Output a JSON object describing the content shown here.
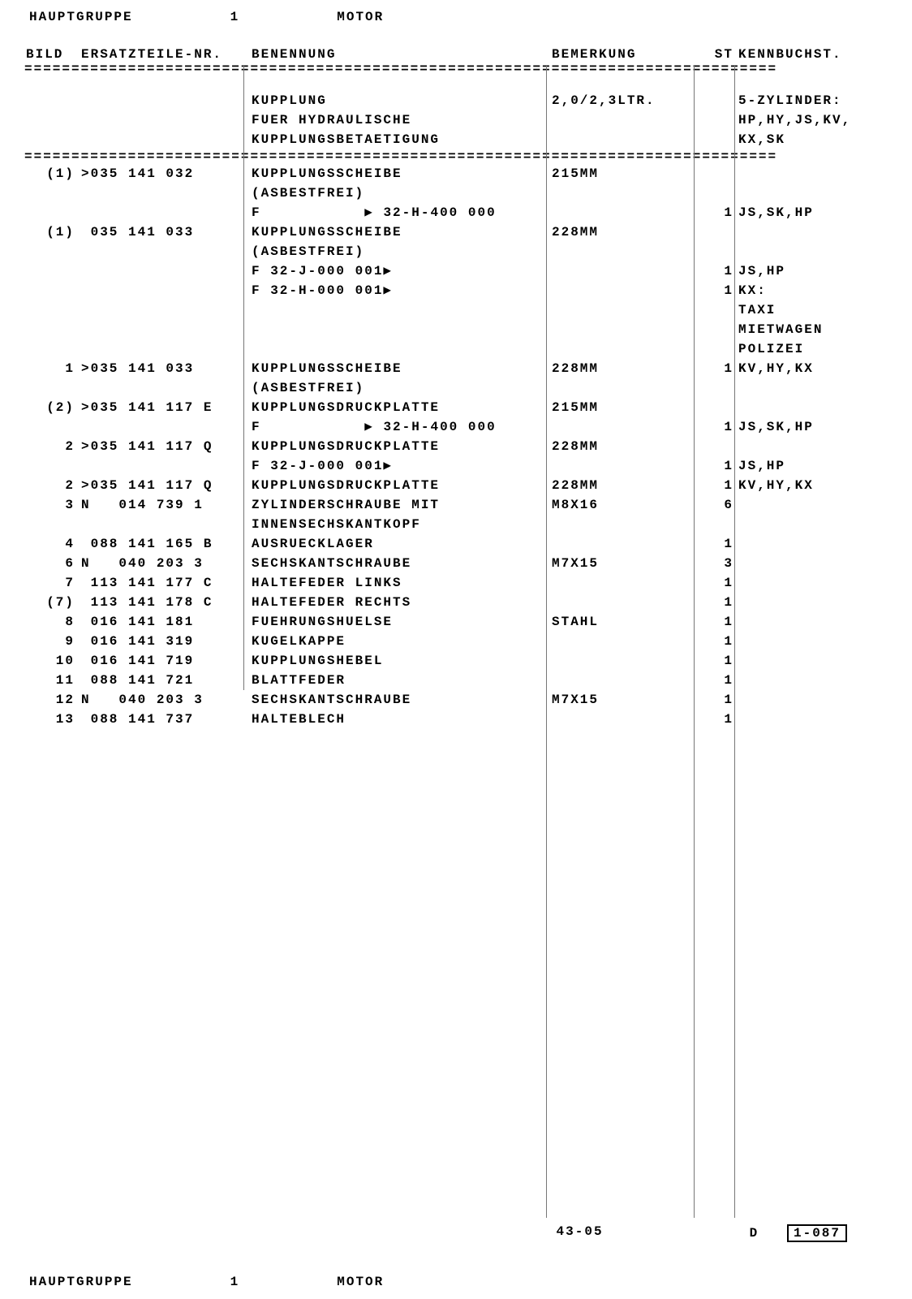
{
  "header": {
    "group_label": "HAUPTGRUPPE",
    "group_num": "1",
    "group_name": "MOTOR"
  },
  "columns": {
    "bild": "BILD",
    "part": "ERSATZTEILE-NR.",
    "benennung": "BENENNUNG",
    "bemerkung": "BEMERKUNG",
    "st": "ST",
    "kennbuchst": "KENNBUCHST."
  },
  "sep": "================================================================================",
  "section": {
    "ben1": "KUPPLUNG",
    "ben2": "FUER HYDRAULISCHE",
    "ben3": "KUPPLUNGSBETAETIGUNG",
    "bem": "2,0/2,3LTR.",
    "kenn1": "5-ZYLINDER:",
    "kenn2": "HP,HY,JS,KV,",
    "kenn3": "KX,SK"
  },
  "rows": [
    {
      "bild": "(1)",
      "part": ">035 141 032",
      "ben": "KUPPLUNGSSCHEIBE",
      "bem": "215MM",
      "st": "",
      "kenn": ""
    },
    {
      "bild": "",
      "part": "",
      "ben": "(ASBESTFREI)",
      "bem": "",
      "st": "",
      "kenn": ""
    },
    {
      "bild": "",
      "part": "",
      "ben": "F           ▶ 32-H-400 000",
      "bem": "",
      "st": "1",
      "kenn": "JS,SK,HP"
    },
    {
      "bild": "(1)",
      "part": " 035 141 033",
      "ben": "KUPPLUNGSSCHEIBE",
      "bem": "228MM",
      "st": "",
      "kenn": ""
    },
    {
      "bild": "",
      "part": "",
      "ben": "(ASBESTFREI)",
      "bem": "",
      "st": "",
      "kenn": ""
    },
    {
      "bild": "",
      "part": "",
      "ben": "F 32-J-000 001▶",
      "bem": "",
      "st": "1",
      "kenn": "JS,HP"
    },
    {
      "bild": "",
      "part": "",
      "ben": "F 32-H-000 001▶",
      "bem": "",
      "st": "1",
      "kenn": "KX:"
    },
    {
      "bild": "",
      "part": "",
      "ben": "",
      "bem": "",
      "st": "",
      "kenn": "TAXI"
    },
    {
      "bild": "",
      "part": "",
      "ben": "",
      "bem": "",
      "st": "",
      "kenn": "MIETWAGEN"
    },
    {
      "bild": "",
      "part": "",
      "ben": "",
      "bem": "",
      "st": "",
      "kenn": "POLIZEI"
    },
    {
      "bild": "1",
      "part": ">035 141 033",
      "ben": "KUPPLUNGSSCHEIBE",
      "bem": "228MM",
      "st": "1",
      "kenn": "KV,HY,KX"
    },
    {
      "bild": "",
      "part": "",
      "ben": "(ASBESTFREI)",
      "bem": "",
      "st": "",
      "kenn": ""
    },
    {
      "bild": "(2)",
      "part": ">035 141 117 E",
      "ben": "KUPPLUNGSDRUCKPLATTE",
      "bem": "215MM",
      "st": "",
      "kenn": ""
    },
    {
      "bild": "",
      "part": "",
      "ben": "F           ▶ 32-H-400 000",
      "bem": "",
      "st": "1",
      "kenn": "JS,SK,HP"
    },
    {
      "bild": "2",
      "part": ">035 141 117 Q",
      "ben": "KUPPLUNGSDRUCKPLATTE",
      "bem": "228MM",
      "st": "",
      "kenn": ""
    },
    {
      "bild": "",
      "part": "",
      "ben": "F 32-J-000 001▶",
      "bem": "",
      "st": "1",
      "kenn": "JS,HP"
    },
    {
      "bild": "2",
      "part": ">035 141 117 Q",
      "ben": "KUPPLUNGSDRUCKPLATTE",
      "bem": "228MM",
      "st": "1",
      "kenn": "KV,HY,KX"
    },
    {
      "bild": "3",
      "part": "N   014 739 1",
      "ben": "ZYLINDERSCHRAUBE MIT",
      "bem": "M8X16",
      "st": "6",
      "kenn": ""
    },
    {
      "bild": "",
      "part": "",
      "ben": "INNENSECHSKANTKOPF",
      "bem": "",
      "st": "",
      "kenn": ""
    },
    {
      "bild": "4",
      "part": " 088 141 165 B",
      "ben": "AUSRUECKLAGER",
      "bem": "",
      "st": "1",
      "kenn": ""
    },
    {
      "bild": "6",
      "part": "N   040 203 3",
      "ben": "SECHSKANTSCHRAUBE",
      "bem": "M7X15",
      "st": "3",
      "kenn": ""
    },
    {
      "bild": "7",
      "part": " 113 141 177 C",
      "ben": "HALTEFEDER LINKS",
      "bem": "",
      "st": "1",
      "kenn": ""
    },
    {
      "bild": "(7)",
      "part": " 113 141 178 C",
      "ben": "HALTEFEDER RECHTS",
      "bem": "",
      "st": "1",
      "kenn": ""
    },
    {
      "bild": "8",
      "part": " 016 141 181",
      "ben": "FUEHRUNGSHUELSE",
      "bem": "STAHL",
      "st": "1",
      "kenn": ""
    },
    {
      "bild": "9",
      "part": " 016 141 319",
      "ben": "KUGELKAPPE",
      "bem": "",
      "st": "1",
      "kenn": ""
    },
    {
      "bild": "10",
      "part": " 016 141 719",
      "ben": "KUPPLUNGSHEBEL",
      "bem": "",
      "st": "1",
      "kenn": ""
    },
    {
      "bild": "11",
      "part": " 088 141 721",
      "ben": "BLATTFEDER",
      "bem": "",
      "st": "1",
      "kenn": ""
    },
    {
      "bild": "12",
      "part": "N   040 203 3",
      "ben": "SECHSKANTSCHRAUBE",
      "bem": "M7X15",
      "st": "1",
      "kenn": ""
    },
    {
      "bild": "13",
      "part": " 088 141 737",
      "ben": "HALTEBLECH",
      "bem": "",
      "st": "1",
      "kenn": ""
    }
  ],
  "footer": {
    "code": "43-05",
    "d": "D",
    "page": "1-087"
  }
}
